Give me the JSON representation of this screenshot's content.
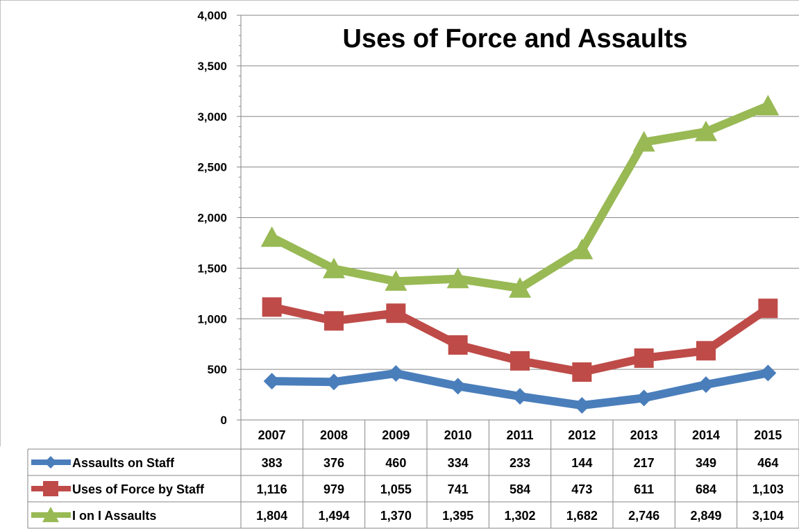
{
  "chart_data": {
    "type": "line",
    "title": "Uses of Force and Assaults",
    "categories": [
      "2007",
      "2008",
      "2009",
      "2010",
      "2011",
      "2012",
      "2013",
      "2014",
      "2015"
    ],
    "ylim": [
      0,
      4000
    ],
    "yticks": [
      "0",
      "500",
      "1,000",
      "1,500",
      "2,000",
      "2,500",
      "3,000",
      "3,500",
      "4,000"
    ],
    "ytick_values": [
      0,
      500,
      1000,
      1500,
      2000,
      2500,
      3000,
      3500,
      4000
    ],
    "grid": true,
    "legend_placement": "data-table",
    "series": [
      {
        "name": "Assaults on Staff",
        "color": "#4A7EBB",
        "marker": "diamond",
        "values": [
          383,
          376,
          460,
          334,
          233,
          144,
          217,
          349,
          464
        ],
        "labels": [
          "383",
          "376",
          "460",
          "334",
          "233",
          "144",
          "217",
          "349",
          "464"
        ]
      },
      {
        "name": "Uses of Force by Staff",
        "color": "#BE4B48",
        "marker": "square",
        "values": [
          1116,
          979,
          1055,
          741,
          584,
          473,
          611,
          684,
          1103
        ],
        "labels": [
          "1,116",
          "979",
          "1,055",
          "741",
          "584",
          "473",
          "611",
          "684",
          "1,103"
        ]
      },
      {
        "name": "I on I Assaults",
        "color": "#98B954",
        "marker": "triangle",
        "values": [
          1804,
          1494,
          1370,
          1395,
          1302,
          1682,
          2746,
          2849,
          3104
        ],
        "labels": [
          "1,804",
          "1,494",
          "1,370",
          "1,395",
          "1,302",
          "1,682",
          "2,746",
          "2,849",
          "3,104"
        ]
      }
    ]
  }
}
